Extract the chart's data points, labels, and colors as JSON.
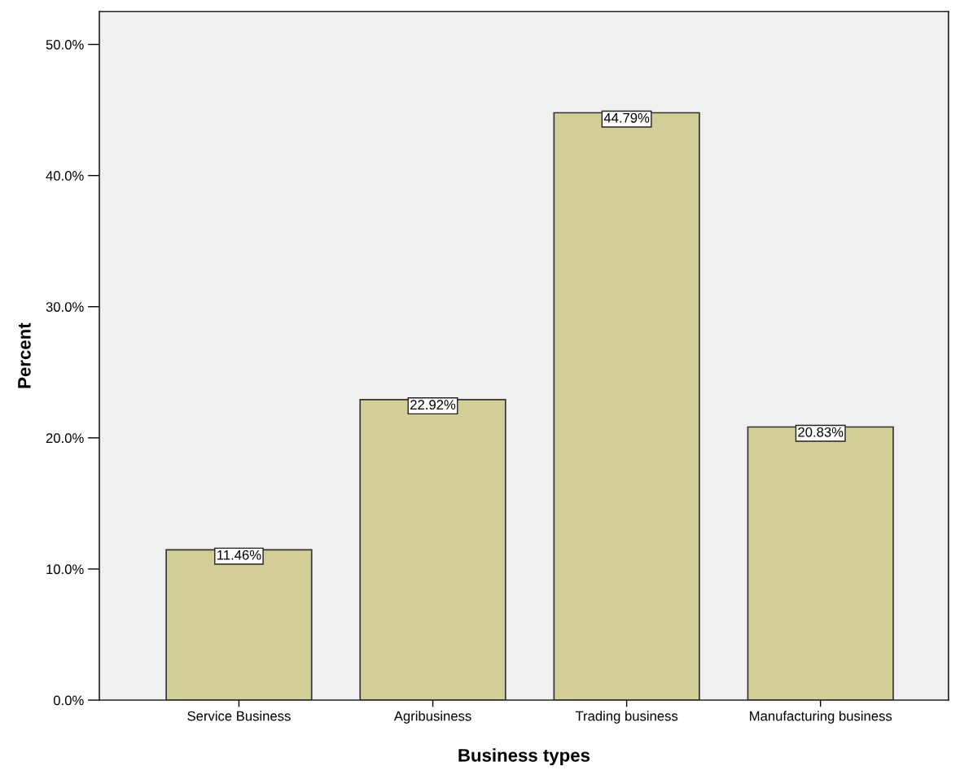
{
  "chart_data": {
    "type": "bar",
    "xlabel": "Business types",
    "ylabel": "Percent",
    "categories": [
      "Service Business",
      "Agribusiness",
      "Trading business",
      "Manufacturing business"
    ],
    "values": [
      11.46,
      22.92,
      44.79,
      20.83
    ],
    "value_labels": [
      "11.46%",
      "22.92%",
      "44.79%",
      "20.83%"
    ],
    "color": "#d3ce97",
    "ylim": [
      0,
      52.5
    ],
    "yticks": [
      {
        "value": 0,
        "label": "0.0%"
      },
      {
        "value": 10,
        "label": "10.0%"
      },
      {
        "value": 20,
        "label": "20.0%"
      },
      {
        "value": 30,
        "label": "30.0%"
      },
      {
        "value": 40,
        "label": "40.0%"
      },
      {
        "value": 50,
        "label": "50.0%"
      }
    ],
    "grid": false
  }
}
